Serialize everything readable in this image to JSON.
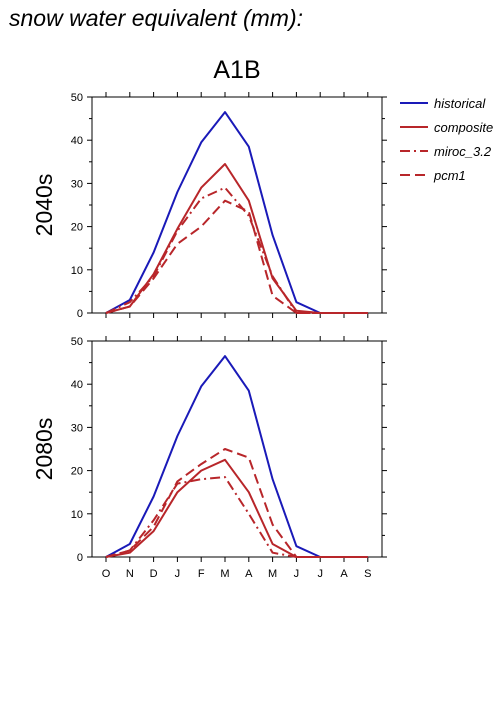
{
  "page": {
    "title": "snow water equivalent (mm):",
    "scenario": "A1B"
  },
  "legend": [
    {
      "label": "historical",
      "color": "#1a1ab8",
      "dash": "solid"
    },
    {
      "label": "composite",
      "color": "#b8262a",
      "dash": "solid"
    },
    {
      "label": "miroc_3.2",
      "color": "#b8262a",
      "dash": "dashdot"
    },
    {
      "label": "pcm1",
      "color": "#b8262a",
      "dash": "dash"
    }
  ],
  "chart_data": [
    {
      "type": "line",
      "panel_label": "2040s",
      "categories": [
        "O",
        "N",
        "D",
        "J",
        "F",
        "M",
        "A",
        "M",
        "J",
        "J",
        "A",
        "S"
      ],
      "ylim": [
        0,
        50
      ],
      "yticks": [
        0,
        10,
        20,
        30,
        40,
        50
      ],
      "legend_position": "right",
      "series": [
        {
          "name": "historical",
          "color": "#1a1ab8",
          "dash": "solid",
          "values": [
            0,
            3,
            14,
            28,
            39.5,
            46.5,
            38.5,
            18,
            2.5,
            0,
            0,
            0
          ]
        },
        {
          "name": "composite",
          "color": "#b8262a",
          "dash": "solid",
          "values": [
            0,
            1.5,
            9,
            19.5,
            29,
            34.5,
            26,
            8,
            0.5,
            0,
            0,
            0
          ]
        },
        {
          "name": "miroc_3.2",
          "color": "#b8262a",
          "dash": "dashdot",
          "values": [
            0,
            2.5,
            8.5,
            19,
            26.5,
            29,
            22.5,
            8.5,
            0,
            0,
            0,
            0
          ]
        },
        {
          "name": "pcm1",
          "color": "#b8262a",
          "dash": "dash",
          "values": [
            0,
            1.5,
            8,
            16,
            20,
            26,
            23.5,
            4,
            0,
            0,
            0,
            0
          ]
        }
      ]
    },
    {
      "type": "line",
      "panel_label": "2080s",
      "categories": [
        "O",
        "N",
        "D",
        "J",
        "F",
        "M",
        "A",
        "M",
        "J",
        "J",
        "A",
        "S"
      ],
      "ylim": [
        0,
        50
      ],
      "yticks": [
        0,
        10,
        20,
        30,
        40,
        50
      ],
      "legend_position": "right",
      "series": [
        {
          "name": "historical",
          "color": "#1a1ab8",
          "dash": "solid",
          "values": [
            0,
            3,
            14,
            28,
            39.5,
            46.5,
            38.5,
            18,
            2.5,
            0,
            0,
            0
          ]
        },
        {
          "name": "composite",
          "color": "#b8262a",
          "dash": "solid",
          "values": [
            0,
            1,
            6,
            15,
            20,
            22.5,
            15,
            3,
            0,
            0,
            0,
            0
          ]
        },
        {
          "name": "miroc_3.2",
          "color": "#b8262a",
          "dash": "dashdot",
          "values": [
            0,
            1.5,
            8.5,
            17,
            18,
            18.5,
            10,
            1,
            0,
            0,
            0,
            0
          ]
        },
        {
          "name": "pcm1",
          "color": "#b8262a",
          "dash": "dash",
          "values": [
            0,
            1.5,
            7,
            17.5,
            21.5,
            25,
            23,
            7.5,
            0,
            0,
            0,
            0
          ]
        }
      ]
    }
  ]
}
